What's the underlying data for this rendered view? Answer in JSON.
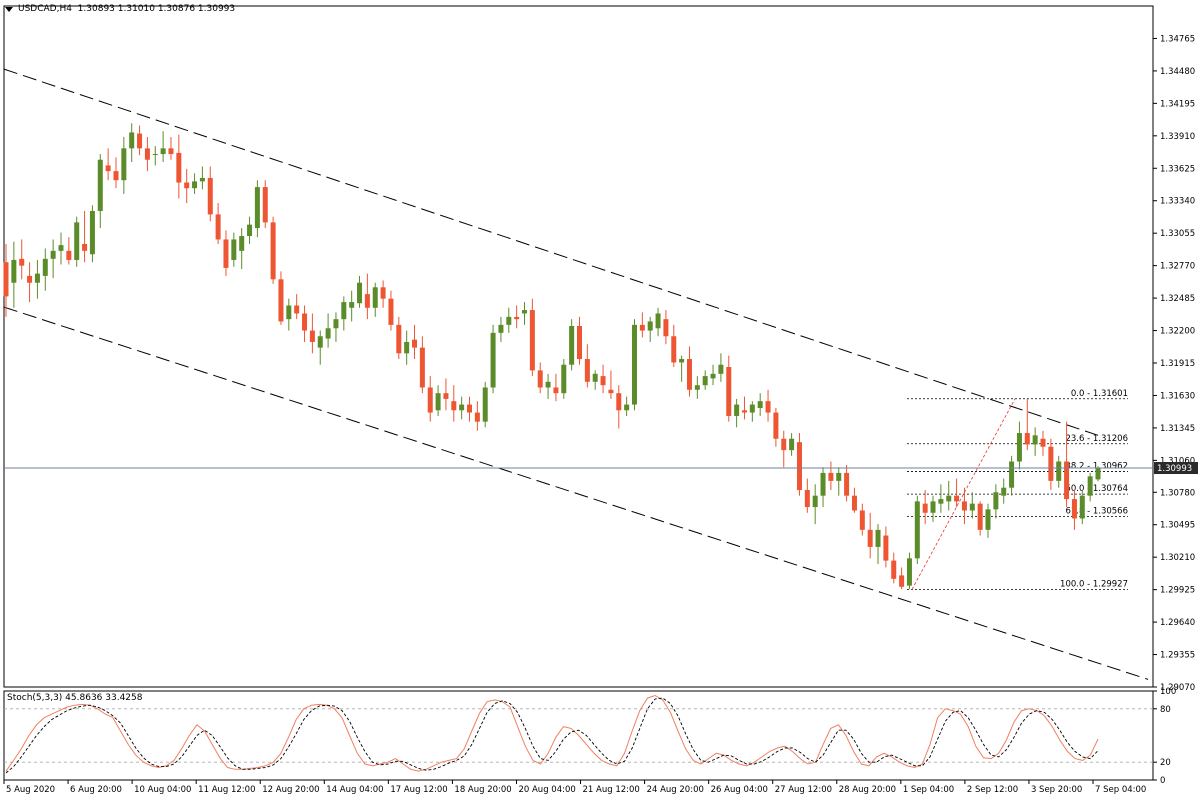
{
  "header": {
    "symbol_label": "USDCAD,H4  1.30893 1.31010 1.30876 1.30993",
    "stoch_label": "Stoch(5,3,3) 45.8636 33.4258"
  },
  "colors": {
    "bull": "#5b8c2a",
    "bear": "#ee5533",
    "channel": "#000000",
    "fib": "#000000",
    "stoch_main": "#f08060",
    "stoch_signal": "#000000",
    "price_line": "#7080a0",
    "price_box_bg": "#2a2a2a",
    "price_box_text": "#ffffff"
  },
  "chart_data": [
    {
      "type": "candlestick",
      "title": "USDCAD,H4",
      "ohlc_label": "1.30893 1.31010 1.30876 1.30993",
      "y_ticks": [
        "1.34765",
        "1.34480",
        "1.34195",
        "1.33910",
        "1.33625",
        "1.33340",
        "1.33055",
        "1.32770",
        "1.32485",
        "1.32200",
        "1.31915",
        "1.31630",
        "1.31345",
        "1.31060",
        "1.30780",
        "1.30495",
        "1.30210",
        "1.29925",
        "1.29640",
        "1.29355",
        "1.29070"
      ],
      "ylim": [
        1.2907,
        1.3505
      ],
      "x_ticks": [
        "5 Aug 2020",
        "6 Aug 20:00",
        "10 Aug 04:00",
        "11 Aug 12:00",
        "12 Aug 20:00",
        "14 Aug 04:00",
        "17 Aug 12:00",
        "18 Aug 20:00",
        "20 Aug 04:00",
        "21 Aug 12:00",
        "24 Aug 20:00",
        "26 Aug 04:00",
        "27 Aug 12:00",
        "28 Aug 20:00",
        "1 Sep 04:00",
        "2 Sep 12:00",
        "3 Sep 20:00",
        "7 Sep 04:00"
      ],
      "candles": [
        [
          1.328,
          1.3296,
          1.3232,
          1.325
        ],
        [
          1.3262,
          1.3298,
          1.324,
          1.3282
        ],
        [
          1.3283,
          1.33,
          1.3265,
          1.3277
        ],
        [
          1.3268,
          1.328,
          1.3245,
          1.3262
        ],
        [
          1.3262,
          1.3282,
          1.3248,
          1.327
        ],
        [
          1.3268,
          1.3292,
          1.3255,
          1.3283
        ],
        [
          1.3283,
          1.33,
          1.3266,
          1.329
        ],
        [
          1.329,
          1.3306,
          1.3278,
          1.3295
        ],
        [
          1.329,
          1.3302,
          1.3278,
          1.3282
        ],
        [
          1.3282,
          1.332,
          1.3276,
          1.3315
        ],
        [
          1.3296,
          1.3325,
          1.328,
          1.329
        ],
        [
          1.3287,
          1.333,
          1.328,
          1.3325
        ],
        [
          1.3325,
          1.3375,
          1.331,
          1.337
        ],
        [
          1.3365,
          1.338,
          1.3352,
          1.336
        ],
        [
          1.336,
          1.3372,
          1.3345,
          1.3352
        ],
        [
          1.3352,
          1.339,
          1.334,
          1.338
        ],
        [
          1.338,
          1.3402,
          1.3368,
          1.3394
        ],
        [
          1.3393,
          1.34,
          1.3374,
          1.338
        ],
        [
          1.338,
          1.339,
          1.336,
          1.337
        ],
        [
          1.3375,
          1.3382,
          1.3365,
          1.3375
        ],
        [
          1.3375,
          1.3395,
          1.3368,
          1.338
        ],
        [
          1.338,
          1.339,
          1.337,
          1.3375
        ],
        [
          1.3376,
          1.3392,
          1.3336,
          1.335
        ],
        [
          1.335,
          1.3362,
          1.3332,
          1.3345
        ],
        [
          1.3345,
          1.3358,
          1.334,
          1.3351
        ],
        [
          1.3351,
          1.3364,
          1.3344,
          1.3354
        ],
        [
          1.3354,
          1.3364,
          1.3316,
          1.3322
        ],
        [
          1.3322,
          1.3332,
          1.3296,
          1.33
        ],
        [
          1.33,
          1.3308,
          1.3268,
          1.3275
        ],
        [
          1.3282,
          1.3306,
          1.3276,
          1.33
        ],
        [
          1.329,
          1.331,
          1.3274,
          1.3303
        ],
        [
          1.3303,
          1.332,
          1.3296,
          1.3313
        ],
        [
          1.331,
          1.3352,
          1.3302,
          1.3346
        ],
        [
          1.3346,
          1.3352,
          1.331,
          1.3315
        ],
        [
          1.3315,
          1.332,
          1.3261,
          1.3265
        ],
        [
          1.3265,
          1.3272,
          1.3225,
          1.3228
        ],
        [
          1.323,
          1.3248,
          1.322,
          1.3242
        ],
        [
          1.3242,
          1.3252,
          1.323,
          1.3235
        ],
        [
          1.3235,
          1.3242,
          1.321,
          1.322
        ],
        [
          1.322,
          1.3235,
          1.32,
          1.321
        ],
        [
          1.3205,
          1.322,
          1.319,
          1.3215
        ],
        [
          1.3213,
          1.3235,
          1.3205,
          1.3222
        ],
        [
          1.3222,
          1.3236,
          1.321,
          1.323
        ],
        [
          1.323,
          1.325,
          1.322,
          1.3245
        ],
        [
          1.324,
          1.3255,
          1.3228,
          1.3245
        ],
        [
          1.3244,
          1.3268,
          1.324,
          1.3262
        ],
        [
          1.3252,
          1.327,
          1.323,
          1.324
        ],
        [
          1.324,
          1.3262,
          1.3232,
          1.3258
        ],
        [
          1.3258,
          1.3264,
          1.324,
          1.3248
        ],
        [
          1.3248,
          1.3255,
          1.322,
          1.3225
        ],
        [
          1.3225,
          1.3232,
          1.3195,
          1.32
        ],
        [
          1.32,
          1.322,
          1.319,
          1.321
        ],
        [
          1.3212,
          1.3225,
          1.3195,
          1.3205
        ],
        [
          1.3205,
          1.3215,
          1.3165,
          1.317
        ],
        [
          1.317,
          1.318,
          1.314,
          1.3148
        ],
        [
          1.315,
          1.3172,
          1.3145,
          1.3165
        ],
        [
          1.3165,
          1.3178,
          1.315,
          1.316
        ],
        [
          1.3158,
          1.3172,
          1.314,
          1.315
        ],
        [
          1.315,
          1.3162,
          1.3142,
          1.3155
        ],
        [
          1.3155,
          1.3162,
          1.314,
          1.3148
        ],
        [
          1.3148,
          1.3158,
          1.3132,
          1.314
        ],
        [
          1.314,
          1.3175,
          1.3135,
          1.317
        ],
        [
          1.317,
          1.3225,
          1.3165,
          1.3218
        ],
        [
          1.3218,
          1.3232,
          1.321,
          1.3225
        ],
        [
          1.3225,
          1.324,
          1.3218,
          1.3232
        ],
        [
          1.3232,
          1.3242,
          1.3222,
          1.323
        ],
        [
          1.3235,
          1.3245,
          1.3225,
          1.3238
        ],
        [
          1.3238,
          1.3248,
          1.318,
          1.3185
        ],
        [
          1.3185,
          1.3192,
          1.3165,
          1.317
        ],
        [
          1.317,
          1.3182,
          1.316,
          1.3175
        ],
        [
          1.317,
          1.3182,
          1.3158,
          1.3165
        ],
        [
          1.3165,
          1.3195,
          1.316,
          1.319
        ],
        [
          1.319,
          1.323,
          1.3185,
          1.3224
        ],
        [
          1.3224,
          1.3232,
          1.319,
          1.3195
        ],
        [
          1.3195,
          1.3208,
          1.317,
          1.3175
        ],
        [
          1.3175,
          1.3185,
          1.3168,
          1.3182
        ],
        [
          1.318,
          1.319,
          1.3165,
          1.3172
        ],
        [
          1.3168,
          1.3185,
          1.316,
          1.3165
        ],
        [
          1.3165,
          1.3172,
          1.3134,
          1.315
        ],
        [
          1.315,
          1.3162,
          1.3145,
          1.3155
        ],
        [
          1.3155,
          1.323,
          1.315,
          1.3225
        ],
        [
          1.3225,
          1.3236,
          1.3214,
          1.322
        ],
        [
          1.322,
          1.3232,
          1.321,
          1.3228
        ],
        [
          1.3222,
          1.324,
          1.3215,
          1.3235
        ],
        [
          1.323,
          1.3238,
          1.3208,
          1.3215
        ],
        [
          1.3215,
          1.3225,
          1.3188,
          1.3192
        ],
        [
          1.3192,
          1.3198,
          1.3175,
          1.3195
        ],
        [
          1.3195,
          1.3206,
          1.3162,
          1.3168
        ],
        [
          1.3168,
          1.318,
          1.316,
          1.3172
        ],
        [
          1.3172,
          1.3185,
          1.3168,
          1.318
        ],
        [
          1.3178,
          1.319,
          1.3172,
          1.3182
        ],
        [
          1.3182,
          1.32,
          1.3175,
          1.319
        ],
        [
          1.3188,
          1.3198,
          1.314,
          1.3145
        ],
        [
          1.3145,
          1.316,
          1.3135,
          1.3155
        ],
        [
          1.315,
          1.3162,
          1.3142,
          1.3148
        ],
        [
          1.3148,
          1.3158,
          1.314,
          1.3155
        ],
        [
          1.3152,
          1.3165,
          1.3145,
          1.3158
        ],
        [
          1.3158,
          1.3168,
          1.314,
          1.3148
        ],
        [
          1.3148,
          1.3152,
          1.3118,
          1.3125
        ],
        [
          1.3125,
          1.3132,
          1.31,
          1.3115
        ],
        [
          1.3115,
          1.313,
          1.311,
          1.3125
        ],
        [
          1.3122,
          1.313,
          1.3075,
          1.308
        ],
        [
          1.308,
          1.309,
          1.306,
          1.3065
        ],
        [
          1.3065,
          1.3085,
          1.305,
          1.3075
        ],
        [
          1.3075,
          1.31,
          1.3065,
          1.3095
        ],
        [
          1.3095,
          1.3105,
          1.308,
          1.3088
        ],
        [
          1.3088,
          1.31,
          1.3075,
          1.3095
        ],
        [
          1.3095,
          1.3102,
          1.307,
          1.3075
        ],
        [
          1.3075,
          1.3082,
          1.306,
          1.3062
        ],
        [
          1.3062,
          1.3068,
          1.304,
          1.3045
        ],
        [
          1.3045,
          1.306,
          1.302,
          1.303
        ],
        [
          1.303,
          1.305,
          1.3015,
          1.3045
        ],
        [
          1.304,
          1.3048,
          1.3012,
          1.3018
        ],
        [
          1.3018,
          1.3025,
          1.2998,
          1.3002
        ],
        [
          1.3005,
          1.3012,
          1.2993,
          1.2995
        ],
        [
          1.2996,
          1.3025,
          1.2993,
          1.302
        ],
        [
          1.302,
          1.3075,
          1.3015,
          1.307
        ],
        [
          1.3068,
          1.308,
          1.305,
          1.306
        ],
        [
          1.306,
          1.3075,
          1.3052,
          1.307
        ],
        [
          1.3068,
          1.3085,
          1.306,
          1.3072
        ],
        [
          1.307,
          1.3088,
          1.3062,
          1.3075
        ],
        [
          1.3075,
          1.309,
          1.3065,
          1.307
        ],
        [
          1.307,
          1.3082,
          1.305,
          1.3062
        ],
        [
          1.3062,
          1.3078,
          1.3055,
          1.3068
        ],
        [
          1.3068,
          1.307,
          1.304,
          1.3045
        ],
        [
          1.3045,
          1.3068,
          1.3038,
          1.3063
        ],
        [
          1.3063,
          1.3085,
          1.3055,
          1.3078
        ],
        [
          1.3075,
          1.309,
          1.3068,
          1.3082
        ],
        [
          1.3082,
          1.311,
          1.3075,
          1.3105
        ],
        [
          1.3105,
          1.314,
          1.3098,
          1.313
        ],
        [
          1.313,
          1.316,
          1.3115,
          1.312
        ],
        [
          1.312,
          1.3135,
          1.311,
          1.3128
        ],
        [
          1.3125,
          1.3132,
          1.311,
          1.3118
        ],
        [
          1.3118,
          1.3125,
          1.308,
          1.3088
        ],
        [
          1.3088,
          1.311,
          1.3082,
          1.3105
        ],
        [
          1.3105,
          1.314,
          1.3065,
          1.3072
        ],
        [
          1.3072,
          1.308,
          1.3045,
          1.3055
        ],
        [
          1.3055,
          1.308,
          1.305,
          1.3075
        ],
        [
          1.3075,
          1.3095,
          1.307,
          1.3092
        ],
        [
          1.30893,
          1.3101,
          1.30876,
          1.30993
        ]
      ],
      "last_price_label": "1.30993",
      "fibonacci": {
        "levels": [
          {
            "label": "0.0 - 1.31601",
            "value": 1.31601
          },
          {
            "label": "23.6 - 1.31206",
            "value": 1.31206
          },
          {
            "label": "38.2 - 1.30962",
            "value": 1.30962
          },
          {
            "label": "50.0 - 1.30764",
            "value": 1.30764
          },
          {
            "label": "61.8 - 1.30566",
            "value": 1.30566
          },
          {
            "label": "100.0 - 1.29927",
            "value": 1.29927
          }
        ]
      }
    },
    {
      "type": "line",
      "title": "Stoch(5,3,3)",
      "ylim": [
        0,
        100
      ],
      "y_ticks": [
        "100",
        "80",
        "20",
        "0"
      ],
      "series": [
        {
          "name": "Main",
          "values": [
            10,
            22,
            35,
            50,
            62,
            70,
            74,
            78,
            82,
            84,
            85,
            84,
            80,
            74,
            70,
            55,
            40,
            28,
            20,
            16,
            14,
            16,
            22,
            35,
            50,
            62,
            55,
            40,
            25,
            14,
            12,
            12,
            13,
            14,
            16,
            20,
            30,
            48,
            68,
            80,
            84,
            85,
            84,
            80,
            70,
            50,
            30,
            18,
            16,
            18,
            20,
            24,
            18,
            12,
            10,
            12,
            16,
            20,
            22,
            24,
            35,
            55,
            75,
            88,
            90,
            88,
            82,
            60,
            38,
            22,
            18,
            30,
            48,
            60,
            58,
            50,
            40,
            30,
            22,
            18,
            16,
            30,
            55,
            78,
            92,
            95,
            90,
            76,
            55,
            35,
            22,
            18,
            24,
            30,
            28,
            22,
            18,
            16,
            20,
            26,
            32,
            36,
            38,
            32,
            24,
            18,
            20,
            40,
            58,
            62,
            50,
            32,
            18,
            16,
            26,
            30,
            26,
            20,
            16,
            14,
            18,
            40,
            70,
            80,
            78,
            74,
            60,
            38,
            25,
            24,
            30,
            45,
            65,
            78,
            80,
            78,
            72,
            60,
            45,
            32,
            24,
            22,
            28,
            46
          ]
        },
        {
          "name": "Signal",
          "values": [
            8,
            15,
            26,
            38,
            50,
            60,
            68,
            73,
            78,
            81,
            83,
            84,
            82,
            78,
            72,
            64,
            50,
            36,
            25,
            18,
            15,
            15,
            18,
            26,
            38,
            50,
            56,
            50,
            38,
            25,
            16,
            12,
            12,
            13,
            14,
            17,
            24,
            37,
            52,
            68,
            78,
            83,
            84,
            83,
            78,
            66,
            48,
            32,
            20,
            17,
            18,
            21,
            21,
            17,
            13,
            11,
            12,
            15,
            19,
            22,
            27,
            40,
            58,
            76,
            86,
            89,
            86,
            76,
            58,
            38,
            24,
            22,
            32,
            46,
            54,
            56,
            50,
            40,
            30,
            22,
            18,
            21,
            36,
            58,
            80,
            91,
            92,
            86,
            72,
            52,
            34,
            22,
            20,
            24,
            28,
            27,
            22,
            18,
            18,
            21,
            26,
            32,
            36,
            36,
            31,
            24,
            20,
            28,
            42,
            56,
            56,
            46,
            30,
            20,
            20,
            26,
            28,
            24,
            20,
            16,
            16,
            26,
            46,
            66,
            76,
            78,
            70,
            56,
            40,
            28,
            26,
            34,
            48,
            64,
            74,
            78,
            76,
            68,
            56,
            42,
            32,
            26,
            24,
            33
          ]
        }
      ]
    }
  ]
}
